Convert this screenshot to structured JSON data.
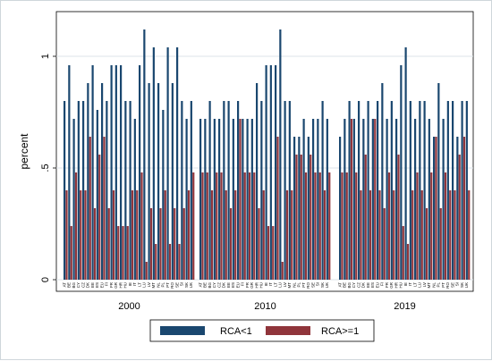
{
  "chart_data": {
    "type": "bar",
    "ylabel": "percent",
    "ylim": [
      0,
      1.18
    ],
    "yticks": [
      "0",
      ".5",
      "1"
    ],
    "ytick_values": [
      0,
      0.5,
      1
    ],
    "grid": true,
    "legend_position": "bottom",
    "groups": [
      {
        "label": "2000",
        "categories": [
          "AT",
          "BE",
          "BG",
          "CY",
          "CZ",
          "DK",
          "EE",
          "ES",
          "EU",
          "FI",
          "FR",
          "GR",
          "HR",
          "HU",
          "IE",
          "IT",
          "LT",
          "LU",
          "LV",
          "MT",
          "NL",
          "PL",
          "PT",
          "RO",
          "SE",
          "SI",
          "SK",
          "UK"
        ],
        "series": [
          {
            "name": "RCA<1",
            "values": [
              0.8,
              0.96,
              0.72,
              0.8,
              0.8,
              0.88,
              0.96,
              0.76,
              0.88,
              0.8,
              0.96,
              0.96,
              0.96,
              0.8,
              0.8,
              0.72,
              0.96,
              1.12,
              0.88,
              1.04,
              0.88,
              0.76,
              1.04,
              0.88,
              1.04,
              0.8,
              0.72,
              0.8
            ]
          },
          {
            "name": "RCA>=1",
            "values": [
              0.4,
              0.24,
              0.48,
              0.4,
              0.4,
              0.64,
              0.32,
              0.56,
              0.64,
              0.32,
              0.4,
              0.24,
              0.24,
              0.24,
              0.4,
              0.4,
              0.48,
              0.08,
              0.32,
              0.16,
              0.32,
              0.4,
              0.16,
              0.32,
              0.16,
              0.32,
              0.4,
              0.48
            ]
          }
        ]
      },
      {
        "label": "2010",
        "categories": [
          "AT",
          "BE",
          "BG",
          "CY",
          "CZ",
          "DK",
          "EE",
          "ES",
          "EU",
          "FI",
          "FR",
          "GR",
          "HR",
          "HU",
          "IE",
          "IT",
          "LT",
          "LU",
          "LV",
          "MT",
          "NL",
          "PL",
          "PT",
          "RO",
          "SE",
          "SI",
          "SK",
          "UK"
        ],
        "series": [
          {
            "name": "RCA<1",
            "values": [
              0.72,
              0.72,
              0.8,
              0.72,
              0.72,
              0.8,
              0.8,
              0.72,
              0.8,
              0.72,
              0.72,
              0.72,
              0.88,
              0.8,
              0.96,
              0.96,
              0.96,
              1.12,
              0.8,
              0.8,
              0.64,
              0.64,
              0.72,
              0.64,
              0.72,
              0.72,
              0.8,
              0.72
            ]
          },
          {
            "name": "RCA>=1",
            "values": [
              0.48,
              0.48,
              0.4,
              0.48,
              0.48,
              0.4,
              0.32,
              0.4,
              0.72,
              0.48,
              0.48,
              0.48,
              0.32,
              0.4,
              0.24,
              0.24,
              0.64,
              0.08,
              0.4,
              0.4,
              0.56,
              0.56,
              0.48,
              0.56,
              0.48,
              0.48,
              0.4,
              0.48
            ]
          }
        ]
      },
      {
        "label": "2019",
        "categories": [
          "AT",
          "BE",
          "BG",
          "CY",
          "CZ",
          "DK",
          "EE",
          "ES",
          "EU",
          "FI",
          "FR",
          "GR",
          "HR",
          "HU",
          "IE",
          "IT",
          "LT",
          "LU",
          "LV",
          "MT",
          "NL",
          "PL",
          "PT",
          "RO",
          "SE",
          "SI",
          "SK",
          "UK"
        ],
        "series": [
          {
            "name": "RCA<1",
            "values": [
              0.64,
              0.72,
              0.8,
              0.72,
              0.8,
              0.72,
              0.8,
              0.72,
              0.8,
              0.88,
              0.72,
              0.8,
              0.72,
              0.96,
              1.04,
              0.8,
              0.72,
              0.8,
              0.8,
              0.72,
              0.64,
              0.88,
              0.72,
              0.8,
              0.8,
              0.64,
              0.8,
              0.8
            ]
          },
          {
            "name": "RCA>=1",
            "values": [
              0.48,
              0.48,
              0.72,
              0.48,
              0.4,
              0.56,
              0.4,
              0.72,
              0.4,
              0.32,
              0.48,
              0.4,
              0.56,
              0.24,
              0.16,
              0.4,
              0.48,
              0.4,
              0.32,
              0.48,
              0.64,
              0.32,
              0.48,
              0.4,
              0.4,
              0.56,
              0.64,
              0.4
            ]
          }
        ]
      }
    ],
    "legend": [
      {
        "label": "RCA<1",
        "color": "#1a476f"
      },
      {
        "label": "RCA>=1",
        "color": "#90353b"
      }
    ]
  }
}
